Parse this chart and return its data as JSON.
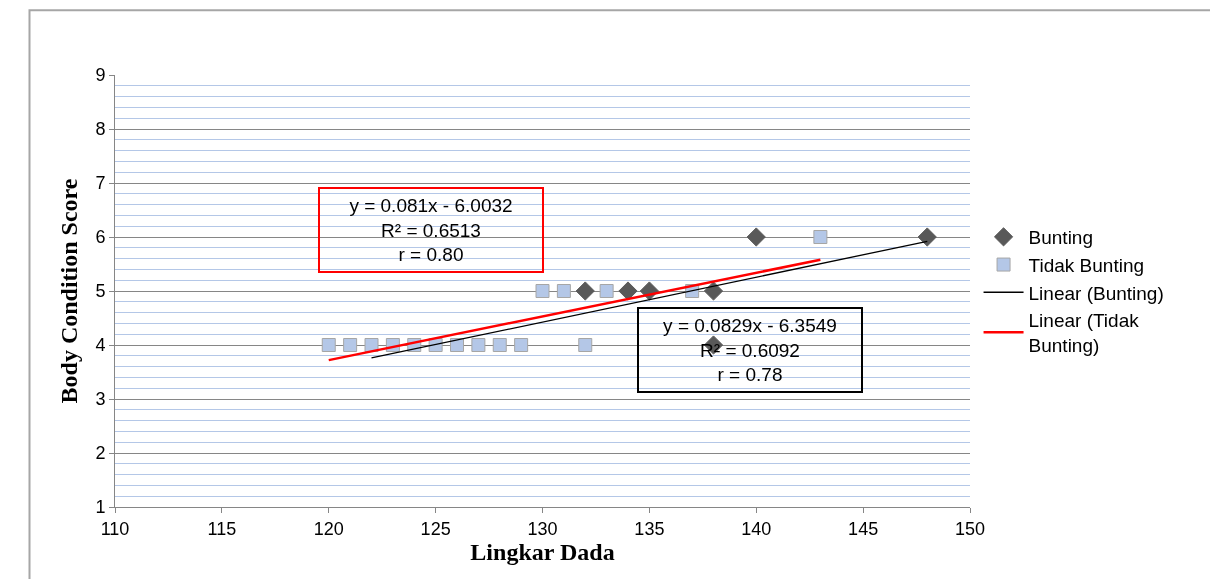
{
  "chart_data": {
    "type": "scatter",
    "xlabel": "Lingkar Dada",
    "ylabel": "Body Condition Score",
    "xlim": [
      110,
      150
    ],
    "xticks": [
      110,
      115,
      120,
      125,
      130,
      135,
      140,
      145,
      150
    ],
    "ylim": [
      1,
      9
    ],
    "yticks": [
      1,
      {
        "value": 1.2,
        "label": null
      },
      {
        "value": 1.4,
        "label": null
      },
      {
        "value": 1.6,
        "label": null
      },
      {
        "value": 1.8,
        "label": null
      },
      2,
      {
        "value": 2.2,
        "label": null
      },
      {
        "value": 2.4,
        "label": null
      },
      {
        "value": 2.6,
        "label": null
      },
      {
        "value": 2.8,
        "label": null
      },
      3,
      {
        "value": 3.2,
        "label": null
      },
      {
        "value": 3.4,
        "label": null
      },
      {
        "value": 3.6,
        "label": null
      },
      {
        "value": 3.8,
        "label": null
      },
      4,
      {
        "value": 4.2,
        "label": null
      },
      {
        "value": 4.4,
        "label": null
      },
      {
        "value": 4.6,
        "label": null
      },
      {
        "value": 4.8,
        "label": null
      },
      5,
      {
        "value": 5.2,
        "label": null
      },
      {
        "value": 5.4,
        "label": null
      },
      {
        "value": 5.6,
        "label": null
      },
      {
        "value": 5.8,
        "label": null
      },
      6,
      {
        "value": 6.2,
        "label": null
      },
      {
        "value": 6.4,
        "label": null
      },
      {
        "value": 6.6,
        "label": null
      },
      {
        "value": 6.8,
        "label": null
      },
      7,
      {
        "value": 7.2,
        "label": null
      },
      {
        "value": 7.4,
        "label": null
      },
      {
        "value": 7.6,
        "label": null
      },
      {
        "value": 7.8,
        "label": null
      },
      8,
      {
        "value": 8.2,
        "label": null
      },
      {
        "value": 8.4,
        "label": null
      },
      {
        "value": 8.6,
        "label": null
      },
      {
        "value": 8.8,
        "label": null
      },
      9
    ],
    "grid": "y",
    "legend": "right",
    "series": [
      {
        "name": "Bunting",
        "marker": "diamond",
        "color": "#595959",
        "x": [
          132,
          134,
          135,
          138,
          138,
          140,
          148
        ],
        "values": [
          5,
          5,
          5,
          5,
          4,
          6,
          6
        ]
      },
      {
        "name": "Tidak Bunting",
        "marker": "square",
        "color": "#b4c7e7",
        "x": [
          120,
          121,
          122,
          123,
          124,
          125,
          126,
          127,
          128,
          129,
          132,
          130,
          131,
          133,
          137,
          143
        ],
        "values": [
          4,
          4,
          4,
          4,
          4,
          4,
          4,
          4,
          4,
          4,
          4,
          5,
          5,
          5,
          5,
          6
        ]
      },
      {
        "name": "Linear (Bunting)",
        "type": "line",
        "marker": "none",
        "line_style": "solid",
        "color": "#000000",
        "x": [
          122,
          148
        ],
        "values": [
          3.76,
          5.92
        ]
      },
      {
        "name": "Linear (Tidak Bunting)",
        "type": "line",
        "marker": "none",
        "line_style": "solid",
        "color": "#ff0000",
        "x": [
          120,
          143
        ],
        "values": [
          3.72,
          5.58
        ]
      }
    ],
    "annotations": [
      "y = 0.081x - 6.0032\nR² = 0.6513\nr = 0.80",
      "y = 0.0829x - 6.3549\nR² = 0.6092\nr = 0.78"
    ]
  }
}
